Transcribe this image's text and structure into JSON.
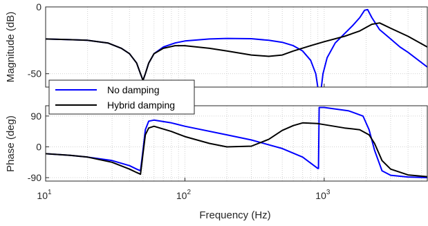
{
  "chart_data": [
    {
      "type": "line",
      "panel": "magnitude",
      "ylabel": "Magnitude (dB)",
      "xscale": "log",
      "xlim": [
        10,
        5500
      ],
      "ylim": [
        -60,
        0
      ],
      "yticks": [
        {
          "v": 0,
          "label": "0"
        },
        {
          "v": -50,
          "label": "-50"
        }
      ],
      "grid": true,
      "series": [
        {
          "name": "No damping",
          "color": "#0000ff",
          "points": [
            [
              10,
              -24
            ],
            [
              15,
              -24.5
            ],
            [
              20,
              -25
            ],
            [
              28,
              -27
            ],
            [
              35,
              -31
            ],
            [
              40,
              -35
            ],
            [
              45,
              -42
            ],
            [
              48,
              -50
            ],
            [
              50,
              -55
            ],
            [
              52,
              -50
            ],
            [
              55,
              -42
            ],
            [
              60,
              -35
            ],
            [
              70,
              -30
            ],
            [
              85,
              -27
            ],
            [
              100,
              -25.5
            ],
            [
              150,
              -24
            ],
            [
              200,
              -23.6
            ],
            [
              300,
              -23.8
            ],
            [
              400,
              -25
            ],
            [
              500,
              -26.5
            ],
            [
              600,
              -29
            ],
            [
              700,
              -33
            ],
            [
              800,
              -40
            ],
            [
              870,
              -50
            ],
            [
              930,
              -70
            ],
            [
              980,
              -50
            ],
            [
              1050,
              -38
            ],
            [
              1200,
              -27
            ],
            [
              1400,
              -20
            ],
            [
              1600,
              -14
            ],
            [
              1800,
              -8
            ],
            [
              1950,
              -2.5
            ],
            [
              2050,
              -2
            ],
            [
              2200,
              -8
            ],
            [
              2500,
              -17
            ],
            [
              3000,
              -24
            ],
            [
              3500,
              -30
            ],
            [
              4000,
              -34
            ],
            [
              5500,
              -45
            ]
          ]
        },
        {
          "name": "Hybrid damping",
          "color": "#000000",
          "points": [
            [
              10,
              -24
            ],
            [
              15,
              -24.5
            ],
            [
              20,
              -25
            ],
            [
              28,
              -27
            ],
            [
              35,
              -31
            ],
            [
              40,
              -35
            ],
            [
              45,
              -42
            ],
            [
              48,
              -50
            ],
            [
              50,
              -55
            ],
            [
              52,
              -50
            ],
            [
              55,
              -42
            ],
            [
              60,
              -35
            ],
            [
              70,
              -31
            ],
            [
              85,
              -29
            ],
            [
              100,
              -29
            ],
            [
              150,
              -31
            ],
            [
              200,
              -33
            ],
            [
              300,
              -36
            ],
            [
              400,
              -37
            ],
            [
              500,
              -36
            ],
            [
              600,
              -33
            ],
            [
              800,
              -29
            ],
            [
              1000,
              -26
            ],
            [
              1400,
              -22
            ],
            [
              1800,
              -18
            ],
            [
              2200,
              -13
            ],
            [
              2500,
              -12
            ],
            [
              3000,
              -16
            ],
            [
              4000,
              -22
            ],
            [
              5500,
              -30
            ]
          ]
        }
      ]
    },
    {
      "type": "line",
      "panel": "phase",
      "ylabel": "Phase (deg)",
      "xlabel": "Frequency  (Hz)",
      "xscale": "log",
      "xlim": [
        10,
        5500
      ],
      "ylim": [
        -100,
        120
      ],
      "yticks": [
        {
          "v": 90,
          "label": "90"
        },
        {
          "v": 0,
          "label": "0"
        },
        {
          "v": -90,
          "label": "-90"
        }
      ],
      "xticks": [
        {
          "v": 10,
          "base": "10",
          "exp": "1"
        },
        {
          "v": 100,
          "base": "10",
          "exp": "2"
        },
        {
          "v": 1000,
          "base": "10",
          "exp": "3"
        }
      ],
      "grid": true,
      "series": [
        {
          "name": "No damping",
          "color": "#0000ff",
          "points": [
            [
              10,
              -20
            ],
            [
              15,
              -25
            ],
            [
              20,
              -30
            ],
            [
              30,
              -40
            ],
            [
              40,
              -55
            ],
            [
              45,
              -65
            ],
            [
              48,
              -70
            ],
            [
              50,
              -10
            ],
            [
              52,
              50
            ],
            [
              55,
              75
            ],
            [
              60,
              78
            ],
            [
              80,
              70
            ],
            [
              100,
              60
            ],
            [
              200,
              35
            ],
            [
              300,
              20
            ],
            [
              500,
              -5
            ],
            [
              700,
              -30
            ],
            [
              900,
              -63
            ],
            [
              910,
              -63
            ],
            [
              920,
              115
            ],
            [
              1000,
              115
            ],
            [
              1500,
              105
            ],
            [
              1900,
              90
            ],
            [
              2100,
              50
            ],
            [
              2300,
              -10
            ],
            [
              2600,
              -70
            ],
            [
              3000,
              -83
            ],
            [
              4000,
              -88
            ],
            [
              5500,
              -90
            ]
          ]
        },
        {
          "name": "Hybrid damping",
          "color": "#000000",
          "points": [
            [
              10,
              -20
            ],
            [
              15,
              -25
            ],
            [
              20,
              -30
            ],
            [
              30,
              -45
            ],
            [
              40,
              -65
            ],
            [
              45,
              -75
            ],
            [
              48,
              -80
            ],
            [
              50,
              -20
            ],
            [
              52,
              35
            ],
            [
              55,
              55
            ],
            [
              60,
              60
            ],
            [
              80,
              45
            ],
            [
              100,
              30
            ],
            [
              150,
              10
            ],
            [
              200,
              0
            ],
            [
              300,
              2
            ],
            [
              400,
              22
            ],
            [
              500,
              48
            ],
            [
              600,
              62
            ],
            [
              700,
              70
            ],
            [
              900,
              68
            ],
            [
              1100,
              62
            ],
            [
              1400,
              55
            ],
            [
              1800,
              50
            ],
            [
              2100,
              35
            ],
            [
              2300,
              10
            ],
            [
              2600,
              -40
            ],
            [
              3000,
              -65
            ],
            [
              4000,
              -82
            ],
            [
              5500,
              -87
            ]
          ]
        }
      ]
    }
  ],
  "legend": {
    "position": "between-panels-left",
    "items": [
      {
        "label": "No damping",
        "color": "#0000ff"
      },
      {
        "label": "Hybrid damping",
        "color": "#000000"
      }
    ]
  }
}
